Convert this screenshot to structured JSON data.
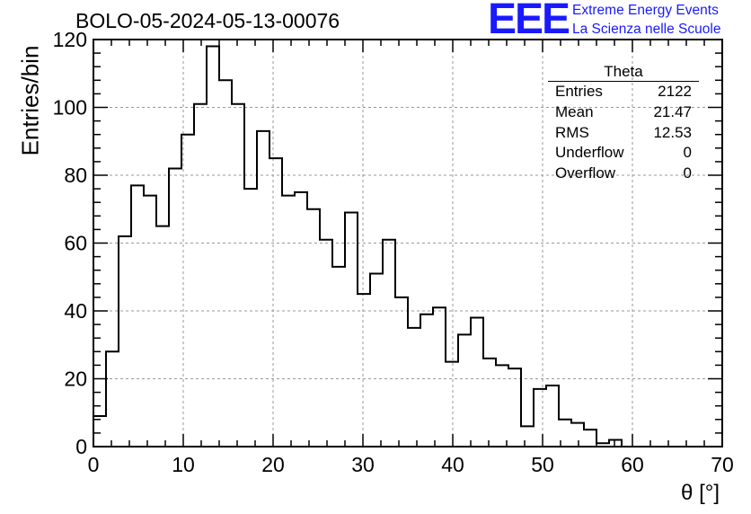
{
  "title": "BOLO-05-2024-05-13-00076",
  "logo": {
    "mark": "EEE",
    "line1": "Extreme Energy Events",
    "line2": "La Scienza nelle Scuole",
    "color": "#1a1aff"
  },
  "stats": {
    "name": "Theta",
    "rows": [
      {
        "label": "Entries",
        "value": "2122"
      },
      {
        "label": "Mean",
        "value": "21.47"
      },
      {
        "label": "RMS",
        "value": "12.53"
      },
      {
        "label": "Underflow",
        "value": "0"
      },
      {
        "label": "Overflow",
        "value": "0"
      }
    ]
  },
  "chart_data": {
    "type": "histogram",
    "title": "BOLO-05-2024-05-13-00076",
    "xlabel": "θ [°]",
    "ylabel": "Entries/bin",
    "xlim": [
      0,
      70
    ],
    "ylim": [
      0,
      120
    ],
    "xticks": [
      0,
      10,
      20,
      30,
      40,
      50,
      60,
      70
    ],
    "yticks": [
      0,
      20,
      40,
      60,
      80,
      100,
      120
    ],
    "grid": true,
    "bin_width": 1.4,
    "bin_edges_start": 0,
    "values": [
      9,
      28,
      62,
      77,
      74,
      65,
      82,
      92,
      101,
      118,
      108,
      101,
      76,
      93,
      85,
      74,
      75,
      70,
      61,
      53,
      69,
      45,
      51,
      61,
      44,
      35,
      39,
      41,
      25,
      33,
      38,
      26,
      24,
      23,
      6,
      17,
      18,
      8,
      7,
      5,
      1,
      2,
      0,
      0,
      0,
      0,
      0,
      0,
      0,
      0
    ],
    "line_color": "#000000"
  }
}
